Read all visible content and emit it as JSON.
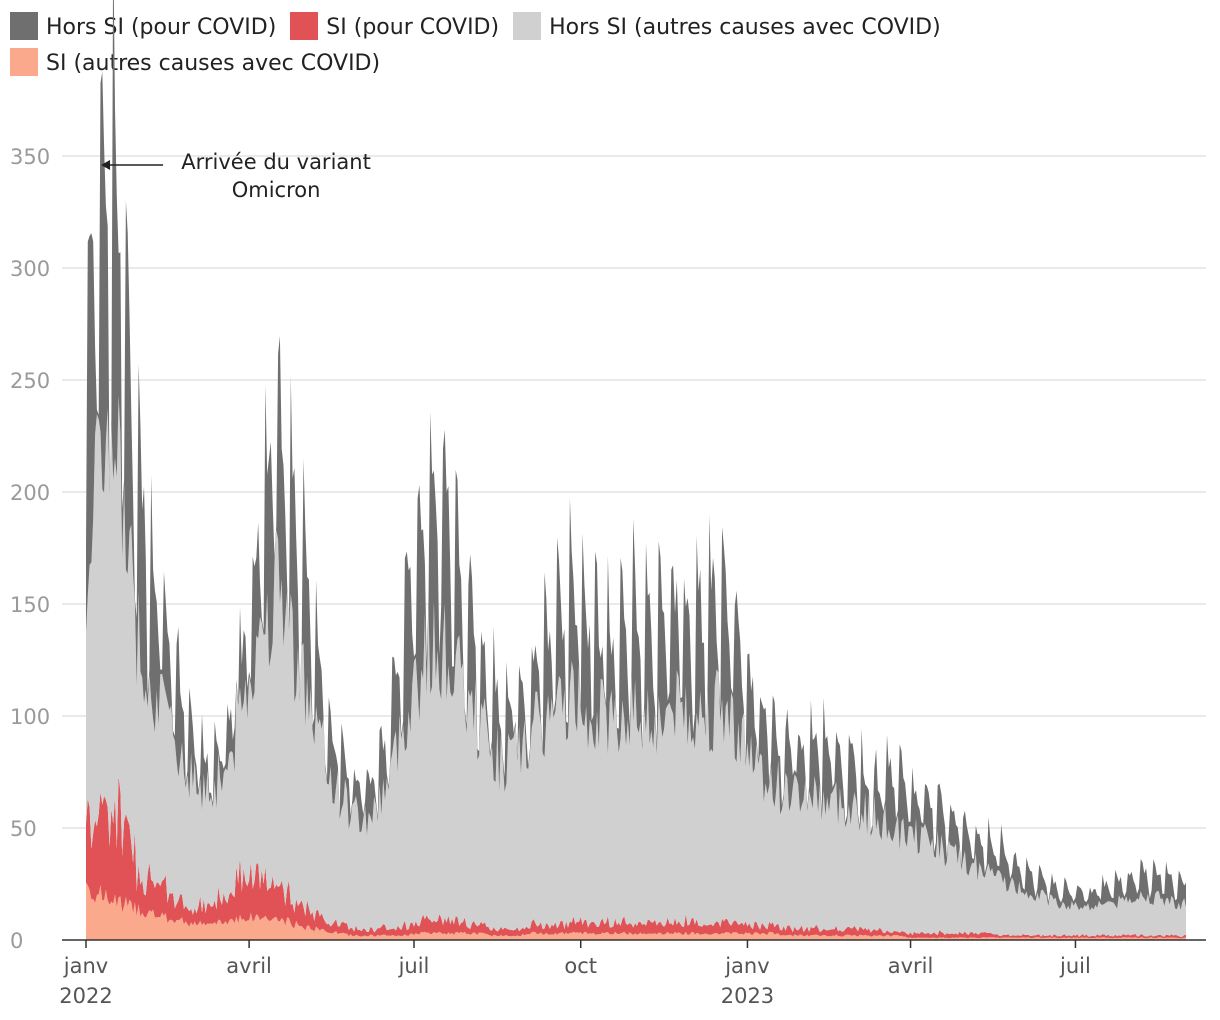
{
  "chart_data": {
    "type": "area",
    "stacked": true,
    "legend_position": "top-left",
    "legend": [
      {
        "key": "hors_si_covid",
        "label": "Hors SI (pour COVID)",
        "color": "#6f6f6f"
      },
      {
        "key": "si_covid",
        "label": "SI (pour COVID)",
        "color": "#e05255"
      },
      {
        "key": "hors_si_autres",
        "label": "Hors SI (autres causes avec COVID)",
        "color": "#d0d0d0"
      },
      {
        "key": "si_autres",
        "label": "SI (autres causes avec COVID)",
        "color": "#fba98c"
      }
    ],
    "stack_order_bottom_to_top": [
      "si_autres",
      "si_covid",
      "hors_si_autres",
      "hors_si_covid"
    ],
    "x_start": "2022-01-01",
    "x_end": "2023-08-31",
    "ylim": [
      0,
      375
    ],
    "yticks": [
      0,
      50,
      100,
      150,
      200,
      250,
      300,
      350
    ],
    "xticks": [
      {
        "date": "2022-01-01",
        "label": "janv",
        "sublabel": "2022"
      },
      {
        "date": "2022-04-01",
        "label": "avril",
        "sublabel": ""
      },
      {
        "date": "2022-07-01",
        "label": "juil",
        "sublabel": ""
      },
      {
        "date": "2022-10-01",
        "label": "oct",
        "sublabel": ""
      },
      {
        "date": "2023-01-01",
        "label": "janv",
        "sublabel": "2023"
      },
      {
        "date": "2023-04-01",
        "label": "avril",
        "sublabel": ""
      },
      {
        "date": "2023-07-01",
        "label": "juil",
        "sublabel": ""
      }
    ],
    "grid": "horizontal",
    "annotation": {
      "date": "2022-01-06",
      "value": 346,
      "lines": [
        "Arrivée du variant",
        "Omicron"
      ]
    },
    "series_approx_weekly": {
      "dates": [
        "2022-01-01",
        "2022-01-08",
        "2022-01-15",
        "2022-01-22",
        "2022-01-29",
        "2022-02-05",
        "2022-02-12",
        "2022-02-19",
        "2022-02-26",
        "2022-03-05",
        "2022-03-12",
        "2022-03-19",
        "2022-03-26",
        "2022-04-02",
        "2022-04-09",
        "2022-04-16",
        "2022-04-23",
        "2022-04-30",
        "2022-05-07",
        "2022-05-14",
        "2022-05-21",
        "2022-05-28",
        "2022-06-04",
        "2022-06-11",
        "2022-06-18",
        "2022-06-25",
        "2022-07-02",
        "2022-07-09",
        "2022-07-16",
        "2022-07-23",
        "2022-07-30",
        "2022-08-06",
        "2022-08-13",
        "2022-08-20",
        "2022-08-27",
        "2022-09-03",
        "2022-09-10",
        "2022-09-17",
        "2022-09-24",
        "2022-10-01",
        "2022-10-08",
        "2022-10-15",
        "2022-10-22",
        "2022-10-29",
        "2022-11-05",
        "2022-11-12",
        "2022-11-19",
        "2022-11-26",
        "2022-12-03",
        "2022-12-10",
        "2022-12-17",
        "2022-12-24",
        "2022-12-31",
        "2023-01-07",
        "2023-01-14",
        "2023-01-21",
        "2023-01-28",
        "2023-02-04",
        "2023-02-11",
        "2023-02-18",
        "2023-02-25",
        "2023-03-04",
        "2023-03-11",
        "2023-03-18",
        "2023-03-25",
        "2023-04-01",
        "2023-04-08",
        "2023-04-15",
        "2023-04-22",
        "2023-04-29",
        "2023-05-06",
        "2023-05-13",
        "2023-05-20",
        "2023-05-27",
        "2023-06-03",
        "2023-06-10",
        "2023-06-17",
        "2023-06-24",
        "2023-07-01",
        "2023-07-08",
        "2023-07-15",
        "2023-07-22",
        "2023-07-29",
        "2023-08-05",
        "2023-08-12",
        "2023-08-19",
        "2023-08-26"
      ],
      "total": [
        250,
        340,
        350,
        300,
        220,
        170,
        140,
        120,
        100,
        80,
        75,
        85,
        110,
        150,
        190,
        230,
        210,
        170,
        130,
        100,
        80,
        70,
        65,
        75,
        95,
        130,
        170,
        195,
        200,
        180,
        150,
        125,
        110,
        95,
        100,
        115,
        125,
        140,
        150,
        150,
        140,
        130,
        135,
        145,
        140,
        135,
        150,
        145,
        140,
        145,
        150,
        135,
        120,
        100,
        90,
        85,
        85,
        85,
        85,
        85,
        80,
        75,
        70,
        70,
        70,
        65,
        60,
        60,
        55,
        50,
        45,
        45,
        40,
        35,
        30,
        28,
        25,
        22,
        20,
        20,
        22,
        25,
        27,
        30,
        30,
        30,
        27
      ],
      "si_covid": [
        30,
        40,
        40,
        35,
        20,
        15,
        12,
        10,
        8,
        7,
        8,
        12,
        18,
        20,
        18,
        15,
        12,
        10,
        7,
        5,
        4,
        3,
        3,
        3,
        3,
        4,
        5,
        6,
        6,
        5,
        4,
        4,
        3,
        3,
        3,
        4,
        4,
        4,
        4,
        5,
        5,
        5,
        5,
        5,
        5,
        5,
        5,
        5,
        5,
        5,
        5,
        5,
        4,
        4,
        3,
        3,
        3,
        3,
        3,
        3,
        3,
        3,
        3,
        2,
        2,
        2,
        2,
        2,
        2,
        2,
        2,
        2,
        1,
        1,
        1,
        1,
        1,
        1,
        1,
        1,
        1,
        1,
        1,
        1,
        1,
        1,
        1
      ],
      "si_autres": [
        25,
        20,
        18,
        16,
        14,
        12,
        10,
        9,
        8,
        7,
        7,
        8,
        10,
        10,
        10,
        9,
        8,
        6,
        5,
        4,
        3,
        2,
        2,
        2,
        2,
        2,
        3,
        3,
        3,
        3,
        3,
        3,
        2,
        2,
        2,
        3,
        3,
        3,
        3,
        3,
        3,
        3,
        3,
        3,
        3,
        3,
        3,
        3,
        3,
        3,
        3,
        3,
        3,
        3,
        3,
        2,
        2,
        2,
        2,
        2,
        2,
        2,
        2,
        2,
        2,
        1,
        1,
        1,
        1,
        1,
        1,
        1,
        1,
        1,
        1,
        1,
        1,
        1,
        1,
        1,
        1,
        1,
        1,
        1,
        1,
        1,
        1
      ],
      "hors_si_autres": [
        100,
        165,
        160,
        140,
        110,
        90,
        80,
        70,
        62,
        55,
        52,
        58,
        70,
        95,
        115,
        135,
        125,
        105,
        85,
        70,
        58,
        52,
        50,
        55,
        70,
        90,
        110,
        120,
        120,
        115,
        100,
        90,
        80,
        75,
        78,
        85,
        90,
        95,
        100,
        100,
        95,
        90,
        92,
        95,
        92,
        90,
        95,
        95,
        92,
        95,
        95,
        90,
        80,
        70,
        65,
        60,
        60,
        60,
        58,
        56,
        55,
        52,
        50,
        48,
        46,
        44,
        42,
        40,
        36,
        32,
        30,
        28,
        25,
        22,
        20,
        18,
        16,
        14,
        13,
        13,
        14,
        15,
        16,
        17,
        17,
        16,
        14
      ]
    }
  }
}
